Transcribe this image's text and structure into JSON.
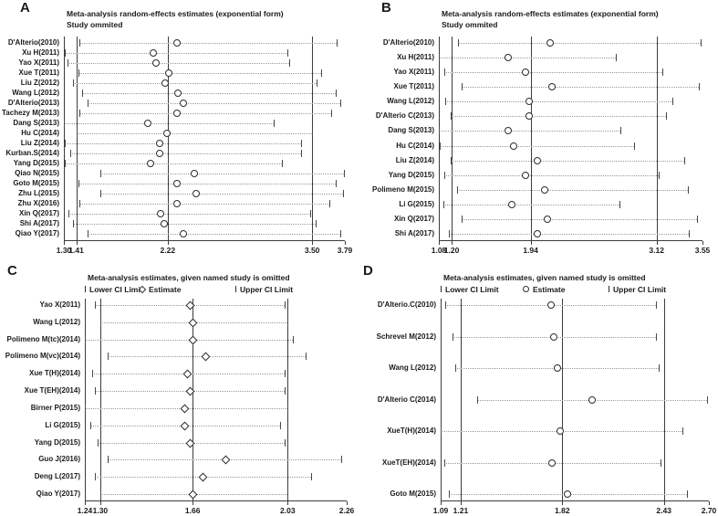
{
  "colors": {
    "background": "#ffffff",
    "text": "#1a1a1a",
    "ref_line": "#3c3c3c",
    "ci_line": "#9a9a9a",
    "marker_outline": "#2d2d2d"
  },
  "chart_data": [
    {
      "panel": "A",
      "type": "scatter",
      "subtype": "forest-sensitivity",
      "title": "Meta-analysis random-effects estimates (exponential form)",
      "subtitle": "Study ommited",
      "marker": "circle",
      "xlim": [
        1.3,
        3.79
      ],
      "xticks": [
        "1.30",
        "1.41",
        "2.22",
        "3.50",
        "3.79"
      ],
      "ref_lines": [
        1.41,
        2.22,
        3.5
      ],
      "studies": [
        {
          "label": "D'Alterio(2010)",
          "lower": 1.44,
          "estimate": 2.3,
          "upper": 3.72
        },
        {
          "label": "Xu H(2011)",
          "lower": 1.31,
          "estimate": 2.09,
          "upper": 3.28
        },
        {
          "label": "Yao X(2011)",
          "lower": 1.33,
          "estimate": 2.12,
          "upper": 3.3
        },
        {
          "label": "Xue T(2011)",
          "lower": 1.43,
          "estimate": 2.23,
          "upper": 3.58
        },
        {
          "label": "Liu Z(2012)",
          "lower": 1.38,
          "estimate": 2.2,
          "upper": 3.54
        },
        {
          "label": "Wang L(2012)",
          "lower": 1.46,
          "estimate": 2.31,
          "upper": 3.71
        },
        {
          "label": "D'Alterio(2013)",
          "lower": 1.51,
          "estimate": 2.36,
          "upper": 3.75
        },
        {
          "label": "Tachezy M(2013)",
          "lower": 1.44,
          "estimate": 2.3,
          "upper": 3.67
        },
        {
          "label": "Dang S(2013)",
          "lower": 1.3,
          "estimate": 2.04,
          "upper": 3.16
        },
        {
          "label": "Hu C(2014)",
          "lower": 1.41,
          "estimate": 2.21,
          "upper": 3.5
        },
        {
          "label": "Liu Z(2014)",
          "lower": 1.31,
          "estimate": 2.15,
          "upper": 3.4
        },
        {
          "label": "Kurban.S(2014)",
          "lower": 1.36,
          "estimate": 2.15,
          "upper": 3.4
        },
        {
          "label": "Yang D(2015)",
          "lower": 1.31,
          "estimate": 2.07,
          "upper": 3.23
        },
        {
          "label": "Qiao N(2015)",
          "lower": 1.62,
          "estimate": 2.46,
          "upper": 3.78
        },
        {
          "label": "Goto M(2015)",
          "lower": 1.43,
          "estimate": 2.3,
          "upper": 3.71
        },
        {
          "label": "Zhu L(2015)",
          "lower": 1.62,
          "estimate": 2.47,
          "upper": 3.77
        },
        {
          "label": "Zhu X(2016)",
          "lower": 1.44,
          "estimate": 2.3,
          "upper": 3.65
        },
        {
          "label": "Xin Q(2017)",
          "lower": 1.34,
          "estimate": 2.16,
          "upper": 3.48
        },
        {
          "label": "Shi A(2017)",
          "lower": 1.38,
          "estimate": 2.19,
          "upper": 3.53
        },
        {
          "label": "Qiao Y(2017)",
          "lower": 1.51,
          "estimate": 2.36,
          "upper": 3.75
        }
      ]
    },
    {
      "panel": "B",
      "type": "scatter",
      "subtype": "forest-sensitivity",
      "title": "Meta-analysis random-effects estimates (exponential form)",
      "subtitle": "Study ommited",
      "marker": "circle",
      "xlim": [
        1.08,
        3.55
      ],
      "xticks": [
        "1.08",
        "1.20",
        "1.94",
        "3.12",
        "3.55"
      ],
      "ref_lines": [
        1.2,
        1.94,
        3.12
      ],
      "studies": [
        {
          "label": "D'Alterio(2010)",
          "lower": 1.26,
          "estimate": 2.12,
          "upper": 3.53
        },
        {
          "label": "Xu H(2011)",
          "lower": 1.08,
          "estimate": 1.73,
          "upper": 2.74
        },
        {
          "label": "Yao X(2011)",
          "lower": 1.13,
          "estimate": 1.89,
          "upper": 3.17
        },
        {
          "label": "Xue T(2011)",
          "lower": 1.29,
          "estimate": 2.14,
          "upper": 3.52
        },
        {
          "label": "Wang L(2012)",
          "lower": 1.14,
          "estimate": 1.93,
          "upper": 3.27
        },
        {
          "label": "D'Alterio C(2013)",
          "lower": 1.19,
          "estimate": 1.93,
          "upper": 3.21
        },
        {
          "label": "Dang S(2013)",
          "lower": 1.08,
          "estimate": 1.73,
          "upper": 2.78
        },
        {
          "label": "Hu C(2014)",
          "lower": 1.09,
          "estimate": 1.78,
          "upper": 2.91
        },
        {
          "label": "Liu Z(2014)",
          "lower": 1.19,
          "estimate": 2.0,
          "upper": 3.38
        },
        {
          "label": "Yang D(2015)",
          "lower": 1.13,
          "estimate": 1.89,
          "upper": 3.14
        },
        {
          "label": "Polimeno M(2015)",
          "lower": 1.25,
          "estimate": 2.07,
          "upper": 3.41
        },
        {
          "label": "Li G(2015)",
          "lower": 1.12,
          "estimate": 1.76,
          "upper": 2.77
        },
        {
          "label": "Xin Q(2017)",
          "lower": 1.29,
          "estimate": 2.1,
          "upper": 3.5
        },
        {
          "label": "Shi A(2017)",
          "lower": 1.17,
          "estimate": 2.0,
          "upper": 3.42
        }
      ]
    },
    {
      "panel": "C",
      "type": "scatter",
      "subtype": "forest-sensitivity",
      "title": "Meta-analysis estimates, given named study is omitted",
      "marker": "diamond",
      "legend": {
        "lower_label": "Lower CI Limit",
        "estimate_label": "Estimate",
        "upper_label": "Upper CI Limit"
      },
      "xlim": [
        1.24,
        2.26
      ],
      "xticks": [
        "1.24",
        "1.30",
        "1.66",
        "2.03",
        "2.26"
      ],
      "ref_lines": [
        1.3,
        1.66,
        2.03
      ],
      "studies": [
        {
          "label": "Yao X(2011)",
          "lower": 1.28,
          "estimate": 1.65,
          "upper": 2.02
        },
        {
          "label": "Wang L(2012)",
          "lower": 1.3,
          "estimate": 1.66,
          "upper": 2.03
        },
        {
          "label": "Polimeno M(tc)(2014)",
          "lower": 1.24,
          "estimate": 1.66,
          "upper": 2.05
        },
        {
          "label": "Polimeno M(vc)(2014)",
          "lower": 1.33,
          "estimate": 1.71,
          "upper": 2.1
        },
        {
          "label": "Xue T(H)(2014)",
          "lower": 1.27,
          "estimate": 1.64,
          "upper": 2.02
        },
        {
          "label": "Xue T(EH)(2014)",
          "lower": 1.28,
          "estimate": 1.65,
          "upper": 2.02
        },
        {
          "label": "Birner P(2015)",
          "lower": 1.24,
          "estimate": 1.63,
          "upper": 2.03
        },
        {
          "label": "Li G(2015)",
          "lower": 1.26,
          "estimate": 1.63,
          "upper": 2.0
        },
        {
          "label": "Yang D(2015)",
          "lower": 1.29,
          "estimate": 1.65,
          "upper": 2.02
        },
        {
          "label": "Guo J(2016)",
          "lower": 1.33,
          "estimate": 1.79,
          "upper": 2.24
        },
        {
          "label": "Deng L(2017)",
          "lower": 1.28,
          "estimate": 1.7,
          "upper": 2.12
        },
        {
          "label": "Qiao Y(2017)",
          "lower": 1.3,
          "estimate": 1.66,
          "upper": 2.03
        }
      ]
    },
    {
      "panel": "D",
      "type": "scatter",
      "subtype": "forest-sensitivity",
      "title": "Meta-analysis estimates, given named study is omitted",
      "marker": "circle",
      "legend": {
        "lower_label": "Lower CI Limit",
        "estimate_label": "Estimate",
        "upper_label": "Upper CI Limit"
      },
      "xlim": [
        1.09,
        2.7
      ],
      "xticks": [
        "1.09",
        "1.21",
        "1.82",
        "2.43",
        "2.70"
      ],
      "ref_lines": [
        1.21,
        1.82,
        2.43
      ],
      "studies": [
        {
          "label": "D'Alterio.C(2010)",
          "lower": 1.12,
          "estimate": 1.75,
          "upper": 2.38
        },
        {
          "label": "Schrevel M(2012)",
          "lower": 1.16,
          "estimate": 1.77,
          "upper": 2.38
        },
        {
          "label": "Wang L(2012)",
          "lower": 1.18,
          "estimate": 1.79,
          "upper": 2.4
        },
        {
          "label": "D'Alterio C(2014)",
          "lower": 1.31,
          "estimate": 2.0,
          "upper": 2.69
        },
        {
          "label": "XueT(H)(2014)",
          "lower": 1.09,
          "estimate": 1.81,
          "upper": 2.54
        },
        {
          "label": "XueT(EH)(2014)",
          "lower": 1.11,
          "estimate": 1.76,
          "upper": 2.41
        },
        {
          "label": "Goto M(2015)",
          "lower": 1.14,
          "estimate": 1.85,
          "upper": 2.57
        }
      ]
    }
  ]
}
